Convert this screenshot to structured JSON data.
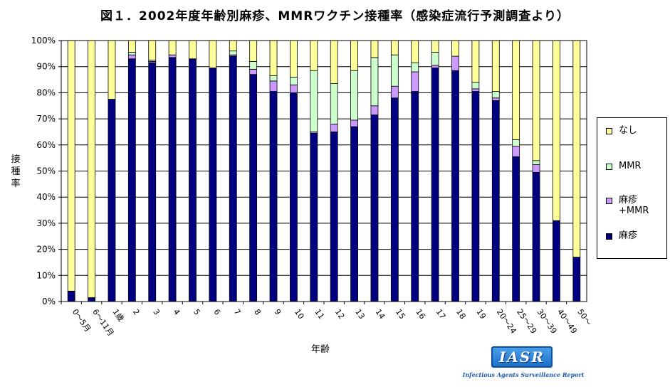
{
  "chart_data": {
    "type": "bar",
    "stacked": true,
    "title": "図１．2002年度年齢別麻疹、MMRワクチン接種率（感染症流行予測調査より）",
    "xlabel": "年齢",
    "ylabel": "接種率",
    "ylim": [
      0,
      100
    ],
    "ytick_labels": [
      "0%",
      "10%",
      "20%",
      "30%",
      "40%",
      "50%",
      "60%",
      "70%",
      "80%",
      "90%",
      "100%"
    ],
    "grid": "horizontal",
    "legend_position": "right",
    "categories": [
      "0～5月",
      "6～11月",
      "1歳",
      "2",
      "3",
      "4",
      "5",
      "6",
      "7",
      "8",
      "9",
      "10",
      "11",
      "12",
      "13",
      "14",
      "15",
      "16",
      "17",
      "18",
      "19",
      "20～24",
      "25～29",
      "30～39",
      "40～49",
      "50～"
    ],
    "series": [
      {
        "name": "麻疹",
        "color": "#000080",
        "values": [
          4,
          1.5,
          77.5,
          93,
          91.5,
          93.5,
          93,
          89.5,
          94,
          87,
          80.5,
          80,
          64.5,
          65,
          67,
          71.5,
          78,
          80.5,
          89.5,
          88.5,
          80.5,
          77,
          55.5,
          49.5,
          31,
          17
        ]
      },
      {
        "name": "麻疹+MMR",
        "color": "#cc99ff",
        "values": [
          0,
          0,
          0,
          1.5,
          0.5,
          1,
          0,
          0,
          0.5,
          2,
          4,
          3,
          0.5,
          3,
          2.5,
          3.5,
          4.5,
          7.5,
          1,
          5.5,
          1,
          1,
          4,
          3,
          0,
          0
        ]
      },
      {
        "name": "MMR",
        "color": "#ccffcc",
        "values": [
          0,
          0,
          0,
          1,
          0.5,
          0,
          0,
          0,
          1.5,
          3,
          2,
          3,
          23.5,
          15.5,
          19,
          18.5,
          12,
          3.5,
          5,
          0,
          2.5,
          2.5,
          2.5,
          1.5,
          0,
          0
        ]
      },
      {
        "name": "なし",
        "color": "#ffff99",
        "values": [
          96,
          98.5,
          22.5,
          4.5,
          7.5,
          5.5,
          7,
          10.5,
          4,
          8,
          13.5,
          14,
          11.5,
          16.5,
          11.5,
          6.5,
          5.5,
          8.5,
          4.5,
          6,
          16,
          19.5,
          38,
          46,
          69,
          83
        ]
      }
    ],
    "legend_items": [
      {
        "label": "なし",
        "color": "#ffff99"
      },
      {
        "label": "MMR",
        "color": "#ccffcc"
      },
      {
        "label": "麻疹\n+MMR",
        "color": "#cc99ff"
      },
      {
        "label": "麻疹",
        "color": "#000080"
      }
    ]
  },
  "logo": {
    "text": "IASR",
    "subtitle": "Infectious Agents Surveillance Report"
  }
}
